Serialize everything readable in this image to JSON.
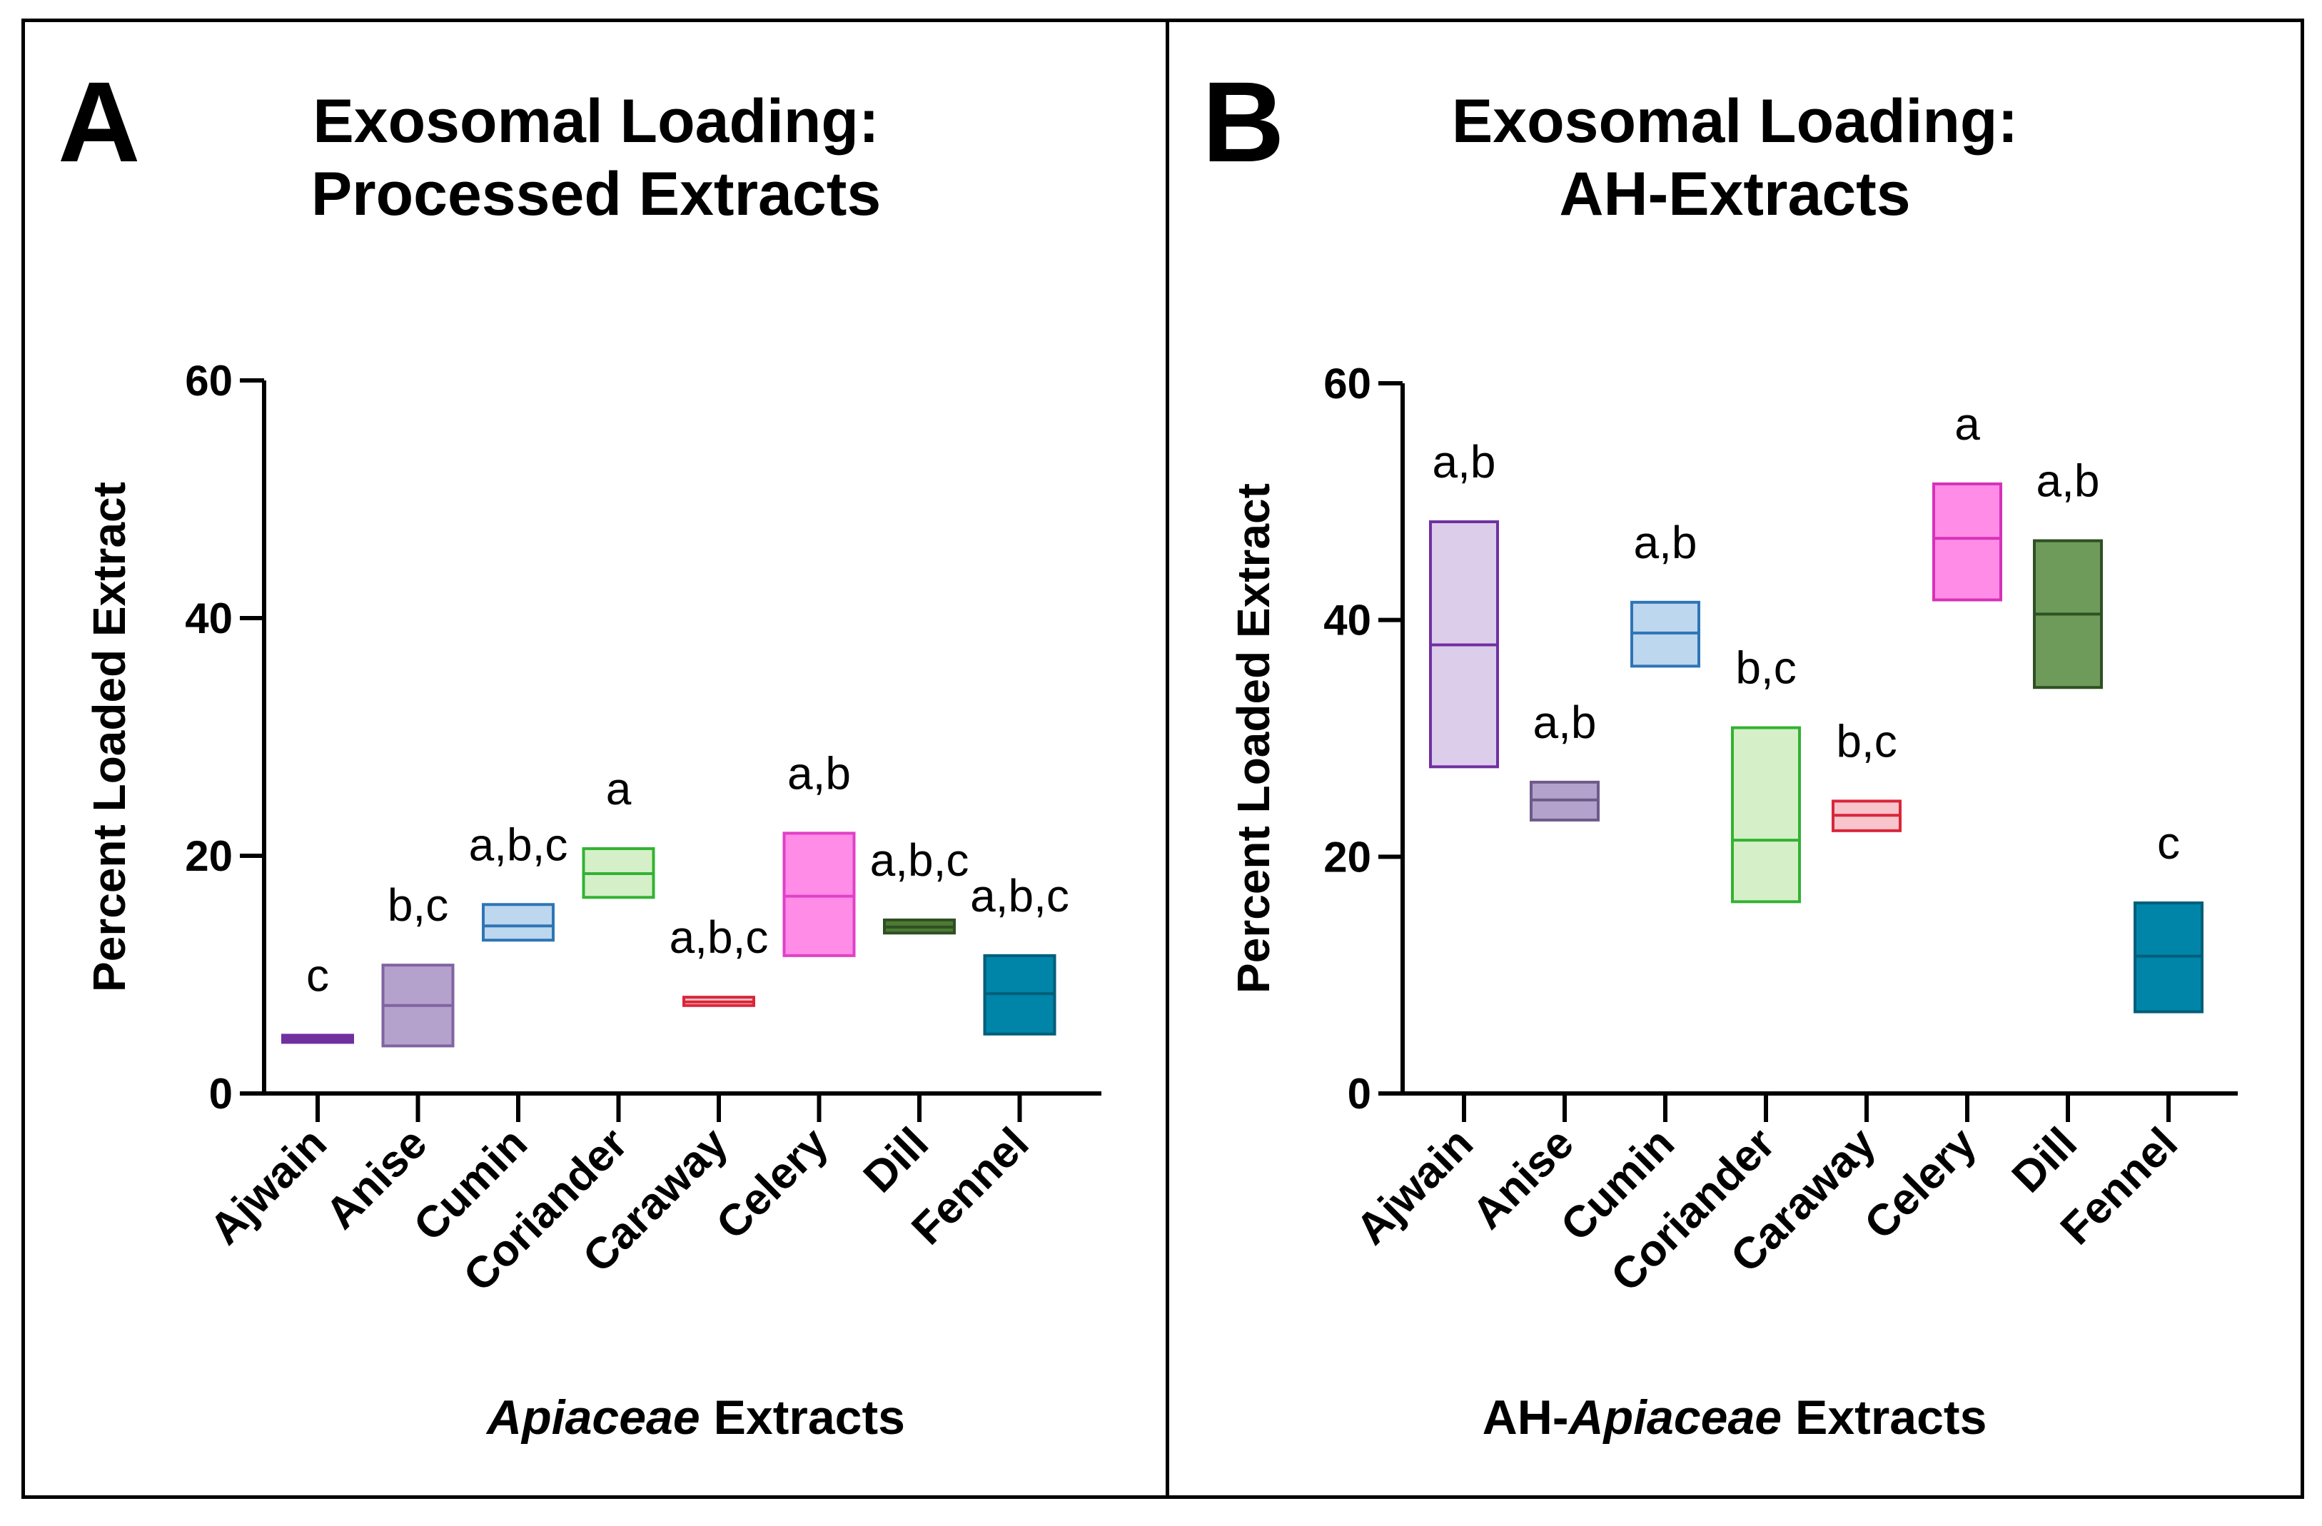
{
  "chart_data": [
    {
      "panel": "A",
      "type": "box",
      "title_lines": [
        "Exosomal Loading:",
        "Processed Extracts"
      ],
      "ylabel": "Percent Loaded Extract",
      "xlabel_italic": "Apiaceae",
      "xlabel_rest": " Extracts",
      "ylim": [
        0,
        60
      ],
      "yticks": [
        0,
        20,
        40,
        60
      ],
      "categories": [
        "Ajwain",
        "Anise",
        "Cumin",
        "Coriander",
        "Caraway",
        "Celery",
        "Dill",
        "Fennel"
      ],
      "series": [
        {
          "name": "Ajwain",
          "min": 4.3,
          "median": 4.6,
          "max": 4.9,
          "letters": "c",
          "color": "#7030A0",
          "fill": "#7030A0"
        },
        {
          "name": "Anise",
          "min": 4.0,
          "median": 7.4,
          "max": 10.8,
          "letters": "b,c",
          "color": "#8064A2",
          "fill": "#B4A2CC"
        },
        {
          "name": "Cumin",
          "min": 12.9,
          "median": 14.1,
          "max": 15.9,
          "letters": "a,b,c",
          "color": "#2E75B6",
          "fill": "#BDD7EE"
        },
        {
          "name": "Coriander",
          "min": 16.5,
          "median": 18.5,
          "max": 20.6,
          "letters": "a",
          "color": "#33B233",
          "fill": "#D5F0C8"
        },
        {
          "name": "Caraway",
          "min": 7.4,
          "median": 7.7,
          "max": 8.1,
          "letters": "a,b,c",
          "color": "#D9263A",
          "fill": "#F7C5CB"
        },
        {
          "name": "Celery",
          "min": 11.6,
          "median": 16.6,
          "max": 21.9,
          "letters": "a,b",
          "color": "#E040C8",
          "fill": "#FF8CE6"
        },
        {
          "name": "Dill",
          "min": 13.5,
          "median": 14.0,
          "max": 14.6,
          "letters": "a,b,c",
          "color": "#2E5023",
          "fill": "#4E7A34"
        },
        {
          "name": "Fennel",
          "min": 5.0,
          "median": 8.4,
          "max": 11.6,
          "letters": "a,b,c",
          "color": "#005E7A",
          "fill": "#0085A8"
        }
      ]
    },
    {
      "panel": "B",
      "type": "box",
      "title_lines": [
        "Exosomal Loading:",
        "AH-Extracts"
      ],
      "ylabel": "Percent Loaded Extract",
      "xlabel_pre": "AH-",
      "xlabel_italic": "Apiaceae",
      "xlabel_rest": " Extracts",
      "ylim": [
        0,
        60
      ],
      "yticks": [
        0,
        20,
        40,
        60
      ],
      "categories": [
        "Ajwain",
        "Anise",
        "Cumin",
        "Coriander",
        "Caraway",
        "Celery",
        "Dill",
        "Fennel"
      ],
      "series": [
        {
          "name": "Ajwain",
          "min": 27.6,
          "median": 37.9,
          "max": 48.3,
          "letters": "a,b",
          "color": "#7030A0",
          "fill": "#DCCDEB"
        },
        {
          "name": "Anise",
          "min": 23.1,
          "median": 24.8,
          "max": 26.3,
          "letters": "a,b",
          "color": "#6E5A8A",
          "fill": "#B3A2CC"
        },
        {
          "name": "Cumin",
          "min": 36.1,
          "median": 38.9,
          "max": 41.5,
          "letters": "a,b",
          "color": "#2E75B6",
          "fill": "#BDD7EE"
        },
        {
          "name": "Coriander",
          "min": 16.2,
          "median": 21.4,
          "max": 30.9,
          "letters": "b,c",
          "color": "#33B233",
          "fill": "#D5F0C8"
        },
        {
          "name": "Caraway",
          "min": 22.2,
          "median": 23.5,
          "max": 24.7,
          "letters": "b,c",
          "color": "#D9263A",
          "fill": "#F7C5CB"
        },
        {
          "name": "Celery",
          "min": 41.7,
          "median": 46.9,
          "max": 51.5,
          "letters": "a",
          "color": "#D631B8",
          "fill": "#FF8CE6"
        },
        {
          "name": "Dill",
          "min": 34.3,
          "median": 40.5,
          "max": 46.7,
          "letters": "a,b",
          "color": "#2E5023",
          "fill": "#6E9A5A"
        },
        {
          "name": "Fennel",
          "min": 6.9,
          "median": 11.6,
          "max": 16.1,
          "letters": "c",
          "color": "#005E7A",
          "fill": "#0085A8"
        }
      ]
    }
  ],
  "panels": [
    {
      "letter": "A"
    },
    {
      "letter": "B"
    }
  ]
}
